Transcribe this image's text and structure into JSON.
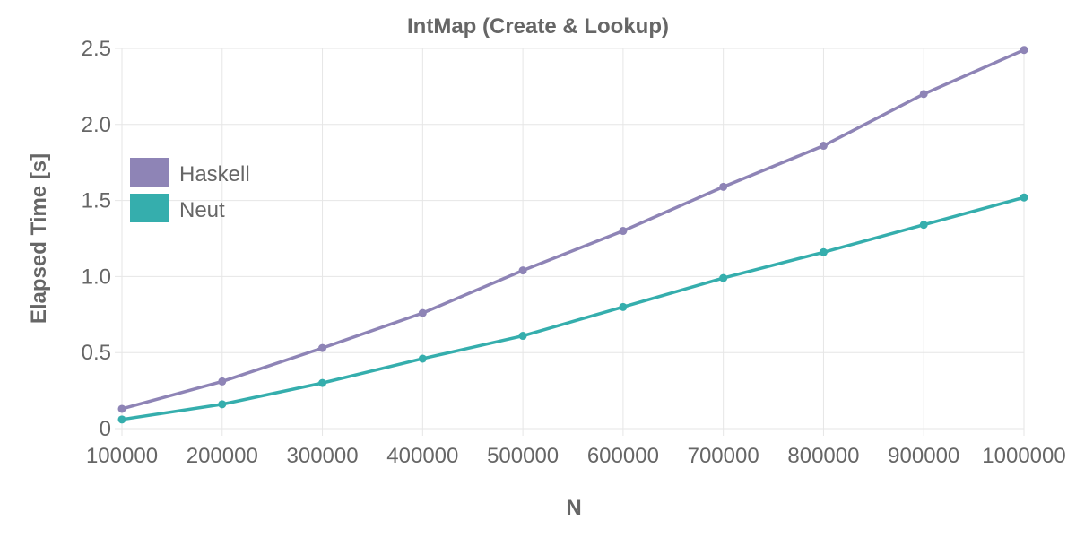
{
  "chart_data": {
    "type": "line",
    "title": "IntMap (Create & Lookup)",
    "xlabel": "N",
    "ylabel": "Elapsed Time [s]",
    "x": [
      100000,
      200000,
      300000,
      400000,
      500000,
      600000,
      700000,
      800000,
      900000,
      1000000
    ],
    "x_tick_labels": [
      "100000",
      "200000",
      "300000",
      "400000",
      "500000",
      "600000",
      "700000",
      "800000",
      "900000",
      "1000000"
    ],
    "y_ticks": [
      0,
      0.5,
      1.0,
      1.5,
      2.0,
      2.5
    ],
    "y_tick_labels": [
      "0",
      "0.5",
      "1.0",
      "1.5",
      "2.0",
      "2.5"
    ],
    "ylim": [
      0,
      2.5
    ],
    "grid": true,
    "legend_position": "left",
    "series": [
      {
        "name": "Haskell",
        "color": "#8e84b6",
        "values": [
          0.13,
          0.31,
          0.53,
          0.76,
          1.04,
          1.3,
          1.59,
          1.86,
          2.2,
          2.49
        ]
      },
      {
        "name": "Neut",
        "color": "#35aead",
        "values": [
          0.06,
          0.16,
          0.3,
          0.46,
          0.61,
          0.8,
          0.99,
          1.16,
          1.34,
          1.52
        ]
      }
    ]
  }
}
